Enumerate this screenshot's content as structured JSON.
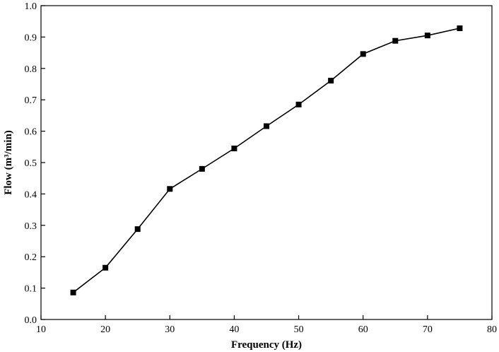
{
  "chart_data": {
    "type": "line",
    "xlabel": "Frequency (Hz)",
    "ylabel": "Flow (m³/min)",
    "xlim": [
      10,
      80
    ],
    "ylim": [
      0.0,
      1.0
    ],
    "x_ticks": [
      "10",
      "20",
      "30",
      "40",
      "50",
      "60",
      "70",
      "80"
    ],
    "y_ticks": [
      "0.0",
      "0.1",
      "0.2",
      "0.3",
      "0.4",
      "0.5",
      "0.6",
      "0.7",
      "0.8",
      "0.9",
      "1.0"
    ],
    "grid": false,
    "marker": "square",
    "color": "#000000",
    "series": [
      {
        "x": [
          15,
          20,
          25,
          30,
          35,
          40,
          45,
          50,
          55,
          60,
          65,
          70,
          75
        ],
        "y": [
          0.086,
          0.165,
          0.288,
          0.416,
          0.48,
          0.545,
          0.616,
          0.685,
          0.761,
          0.846,
          0.888,
          0.905,
          0.928
        ]
      }
    ]
  }
}
